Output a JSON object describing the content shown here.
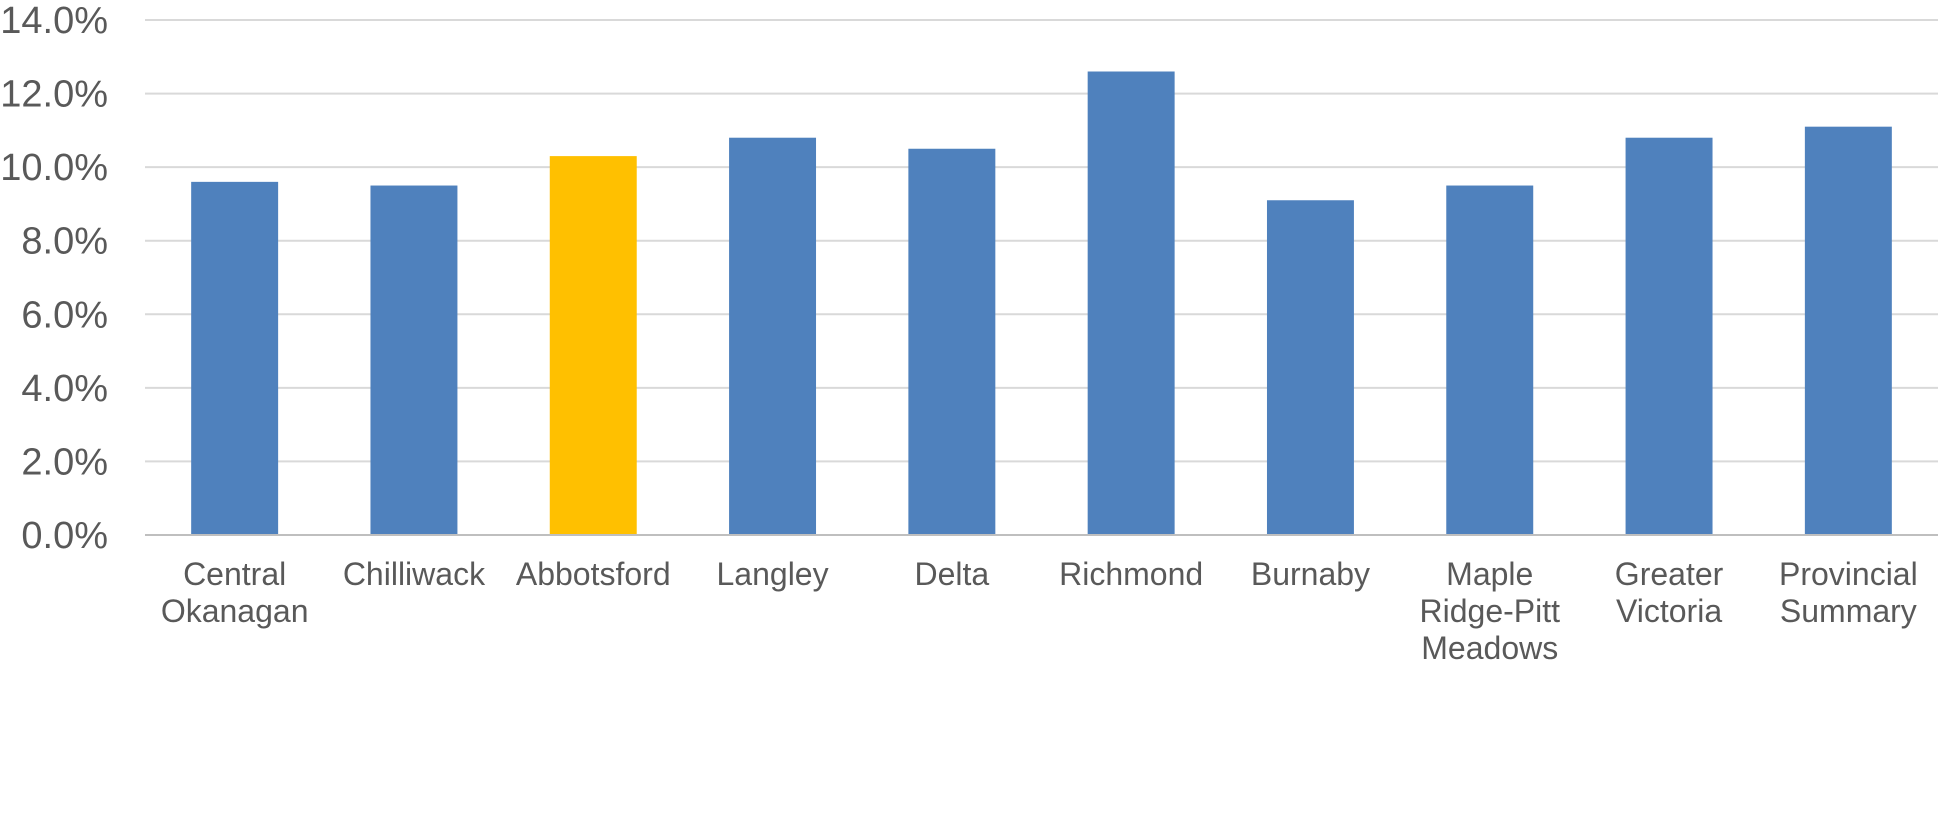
{
  "chart_data": {
    "type": "bar",
    "title": "",
    "xlabel": "",
    "ylabel": "",
    "categories": [
      [
        "Central",
        "Okanagan"
      ],
      [
        "Chilliwack"
      ],
      [
        "Abbotsford"
      ],
      [
        "Langley"
      ],
      [
        "Delta"
      ],
      [
        "Richmond"
      ],
      [
        "Burnaby"
      ],
      [
        "Maple",
        "Ridge-Pitt",
        "Meadows"
      ],
      [
        "Greater",
        "Victoria"
      ],
      [
        "Provincial",
        "Summary"
      ]
    ],
    "values": [
      9.6,
      9.5,
      10.3,
      10.8,
      10.5,
      12.6,
      9.1,
      9.5,
      10.8,
      11.1
    ],
    "ylim": [
      0,
      14
    ],
    "y_ticks": [
      "0.0%",
      "2.0%",
      "4.0%",
      "6.0%",
      "8.0%",
      "10.0%",
      "12.0%",
      "14.0%"
    ],
    "y_tick_values": [
      0,
      2,
      4,
      6,
      8,
      10,
      12,
      14
    ],
    "grid": true,
    "legend": "none",
    "colors": {
      "default": "#4f81bd",
      "highlight": "#ffc000",
      "highlight_category": "Abbotsford"
    }
  }
}
